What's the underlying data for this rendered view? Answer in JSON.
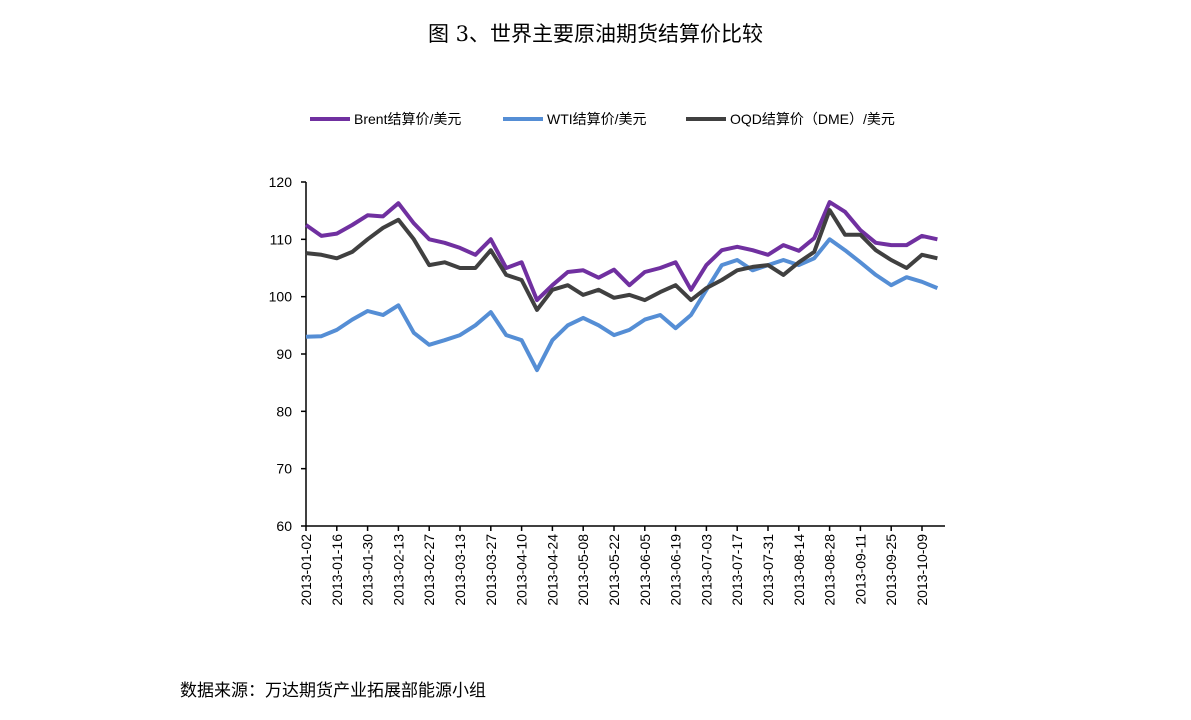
{
  "chart_data": {
    "type": "line",
    "title": "图 3、世界主要原油期货结算价比较",
    "xlabel": "",
    "ylabel": "",
    "ylim": [
      60,
      120
    ],
    "yticks": [
      60,
      70,
      80,
      90,
      100,
      110,
      120
    ],
    "xticks": [
      "2013-01-02",
      "2013-01-16",
      "2013-01-30",
      "2013-02-13",
      "2013-02-27",
      "2013-03-13",
      "2013-03-27",
      "2013-04-10",
      "2013-04-24",
      "2013-05-08",
      "2013-05-22",
      "2013-06-05",
      "2013-06-19",
      "2013-07-03",
      "2013-07-17",
      "2013-07-31",
      "2013-08-14",
      "2013-08-28",
      "2013-09-11",
      "2013-09-25",
      "2013-10-09"
    ],
    "grid": false,
    "legend": "top",
    "x": [
      "2013-01-02",
      "2013-01-09",
      "2013-01-16",
      "2013-01-23",
      "2013-01-30",
      "2013-02-06",
      "2013-02-13",
      "2013-02-20",
      "2013-02-27",
      "2013-03-06",
      "2013-03-13",
      "2013-03-20",
      "2013-03-27",
      "2013-04-03",
      "2013-04-10",
      "2013-04-17",
      "2013-04-24",
      "2013-05-01",
      "2013-05-08",
      "2013-05-15",
      "2013-05-22",
      "2013-05-29",
      "2013-06-05",
      "2013-06-12",
      "2013-06-19",
      "2013-06-26",
      "2013-07-03",
      "2013-07-10",
      "2013-07-17",
      "2013-07-24",
      "2013-07-31",
      "2013-08-07",
      "2013-08-14",
      "2013-08-21",
      "2013-08-28",
      "2013-09-04",
      "2013-09-11",
      "2013-09-18",
      "2013-09-25",
      "2013-10-02",
      "2013-10-09",
      "2013-10-16"
    ],
    "series": [
      {
        "name": "Brent结算价/美元",
        "color": "#7030A0",
        "values": [
          112.5,
          110.6,
          111,
          112.5,
          114.2,
          114,
          116.3,
          112.8,
          110,
          109.4,
          108.5,
          107.3,
          110,
          105,
          106,
          99.4,
          102,
          104.3,
          104.6,
          103.3,
          104.7,
          102,
          104.3,
          105,
          106,
          101.2,
          105.5,
          108.1,
          108.7,
          108.1,
          107.3,
          109,
          108,
          110.2,
          116.5,
          114.8,
          111.6,
          109.4,
          109,
          109,
          110.6,
          110
        ]
      },
      {
        "name": "WTI结算价/美元",
        "color": "#558ED5",
        "values": [
          93,
          93.1,
          94.2,
          96,
          97.5,
          96.8,
          98.5,
          93.7,
          91.6,
          92.4,
          93.3,
          95,
          97.3,
          93.3,
          92.4,
          87.2,
          92.4,
          95,
          96.3,
          95,
          93.3,
          94.2,
          96,
          96.8,
          94.5,
          96.8,
          101.2,
          105.5,
          106.4,
          104.6,
          105.5,
          106.4,
          105.5,
          106.7,
          110,
          108.1,
          106,
          103.8,
          102,
          103.4,
          102.6,
          101.5
        ]
      },
      {
        "name": "OQD结算价（DME）/美元",
        "color": "#404040",
        "values": [
          107.6,
          107.3,
          106.7,
          107.8,
          110,
          112,
          113.4,
          110,
          105.5,
          106,
          105,
          105,
          108.1,
          103.8,
          102.9,
          97.7,
          101.2,
          102,
          100.3,
          101.2,
          99.8,
          100.3,
          99.4,
          100.8,
          102,
          99.4,
          101.5,
          102.9,
          104.6,
          105.2,
          105.5,
          103.8,
          106,
          107.8,
          115.1,
          110.8,
          110.8,
          108.1,
          106.4,
          105,
          107.3,
          106.7
        ]
      }
    ]
  },
  "source": "数据来源：万达期货产业拓展部能源小组"
}
